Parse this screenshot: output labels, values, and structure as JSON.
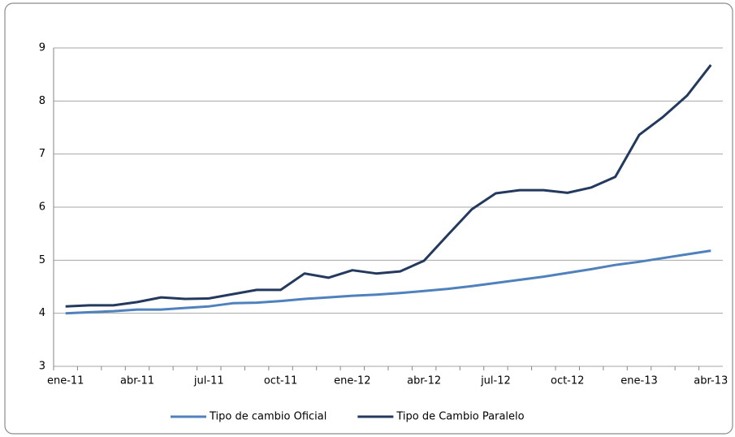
{
  "chart_data": {
    "type": "line",
    "categories": [
      "ene-11",
      null,
      null,
      "abr-11",
      null,
      null,
      "jul-11",
      null,
      null,
      "oct-11",
      null,
      null,
      "ene-12",
      null,
      null,
      "abr-12",
      null,
      null,
      "jul-12",
      null,
      null,
      "oct-12",
      null,
      null,
      "ene-13",
      null,
      null,
      "abr-13"
    ],
    "series": [
      {
        "name": "Tipo de cambio Oficial",
        "color": "#4f81bd",
        "values": [
          4.0,
          4.02,
          4.04,
          4.07,
          4.07,
          4.1,
          4.13,
          4.19,
          4.2,
          4.23,
          4.27,
          4.3,
          4.33,
          4.35,
          4.38,
          4.42,
          4.46,
          4.51,
          4.57,
          4.63,
          4.69,
          4.76,
          4.83,
          4.91,
          4.97,
          5.04,
          5.11,
          5.18
        ]
      },
      {
        "name": "Tipo de Cambio Paralelo",
        "color": "#233a5e",
        "values": [
          4.13,
          4.15,
          4.15,
          4.21,
          4.3,
          4.27,
          4.28,
          4.36,
          4.44,
          4.44,
          4.75,
          4.67,
          4.81,
          4.75,
          4.79,
          4.99,
          5.48,
          5.96,
          6.26,
          6.32,
          6.32,
          6.27,
          6.37,
          6.57,
          7.36,
          7.7,
          8.1,
          8.68
        ]
      }
    ],
    "ylim": [
      3,
      9
    ],
    "yticks": [
      3,
      4,
      5,
      6,
      7,
      8,
      9
    ],
    "grid": true,
    "legend": "bottom"
  }
}
